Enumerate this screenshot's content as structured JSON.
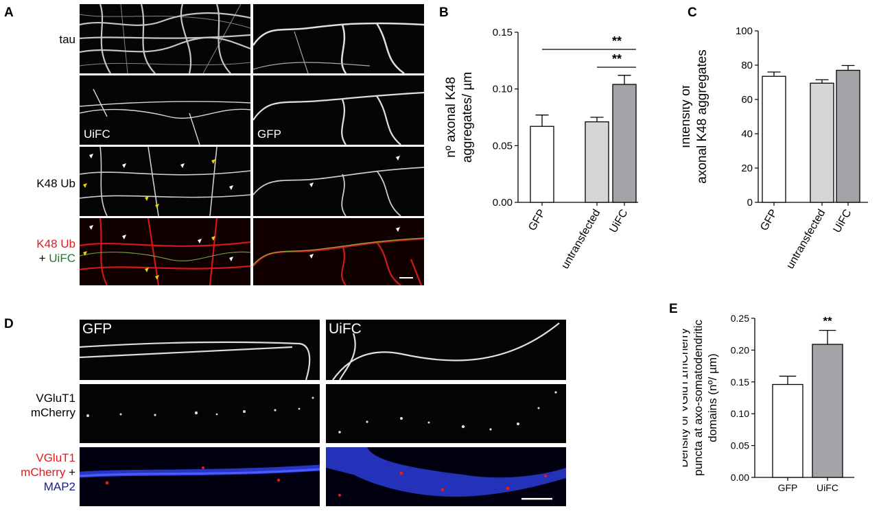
{
  "panels": {
    "A": "A",
    "B": "B",
    "C": "C",
    "D": "D",
    "E": "E"
  },
  "panelA": {
    "rows": [
      "tau",
      "",
      "K48 Ub",
      ""
    ],
    "merge_label": {
      "part1": "K48 Ub",
      "part2_prefix": "+ ",
      "part2": "UiFC"
    },
    "inset_labels": {
      "uifc": "UiFC",
      "gfp": "GFP"
    }
  },
  "panelD": {
    "col_labels": [
      "GFP",
      "UiFC"
    ],
    "row2_label": [
      "VGluT1",
      "mCherry"
    ],
    "row3_label": {
      "line1": "VGluT1",
      "line2a": "mCherry",
      "line2b": " +",
      "line3": "MAP2"
    }
  },
  "chart_data": [
    {
      "panel": "B",
      "type": "bar",
      "categories": [
        "GFP",
        "untransfected",
        "UiFC"
      ],
      "values": [
        0.067,
        0.071,
        0.104
      ],
      "errors": [
        0.01,
        0.004,
        0.008
      ],
      "colors": [
        "#ffffff",
        "#d6d6d6",
        "#a3a3a8"
      ],
      "ylabel": [
        "nº axonal K48",
        "aggregates/ µm"
      ],
      "ylim": [
        0,
        0.15
      ],
      "yticks": [
        "0.00",
        "0.05",
        "0.10",
        "0.15"
      ],
      "significance": [
        {
          "from": "GFP",
          "to": "UiFC",
          "label": "**"
        },
        {
          "from": "untransfected",
          "to": "UiFC",
          "label": "**"
        }
      ]
    },
    {
      "panel": "C",
      "type": "bar",
      "categories": [
        "GFP",
        "untransfected",
        "UiFC"
      ],
      "values": [
        73.5,
        69.5,
        77
      ],
      "errors": [
        2.5,
        2.0,
        2.8
      ],
      "colors": [
        "#ffffff",
        "#d6d6d6",
        "#a3a3a8"
      ],
      "ylabel": [
        "Intensity of",
        "axonal K48 aggregates"
      ],
      "ylim": [
        0,
        100
      ],
      "yticks": [
        "0",
        "20",
        "40",
        "60",
        "80",
        "100"
      ]
    },
    {
      "panel": "E",
      "type": "bar",
      "categories": [
        "GFP",
        "UiFC"
      ],
      "values": [
        0.146,
        0.209
      ],
      "errors": [
        0.013,
        0.022
      ],
      "colors": [
        "#ffffff",
        "#a3a3a8"
      ],
      "ylabel": [
        "Density of VGluT1mCherry",
        "puncta at axo-somatodendritic",
        "domains (nº/ µm)"
      ],
      "ylim": [
        0,
        0.25
      ],
      "yticks": [
        "0.00",
        "0.05",
        "0.10",
        "0.15",
        "0.20",
        "0.25"
      ],
      "significance_label": "**"
    }
  ]
}
